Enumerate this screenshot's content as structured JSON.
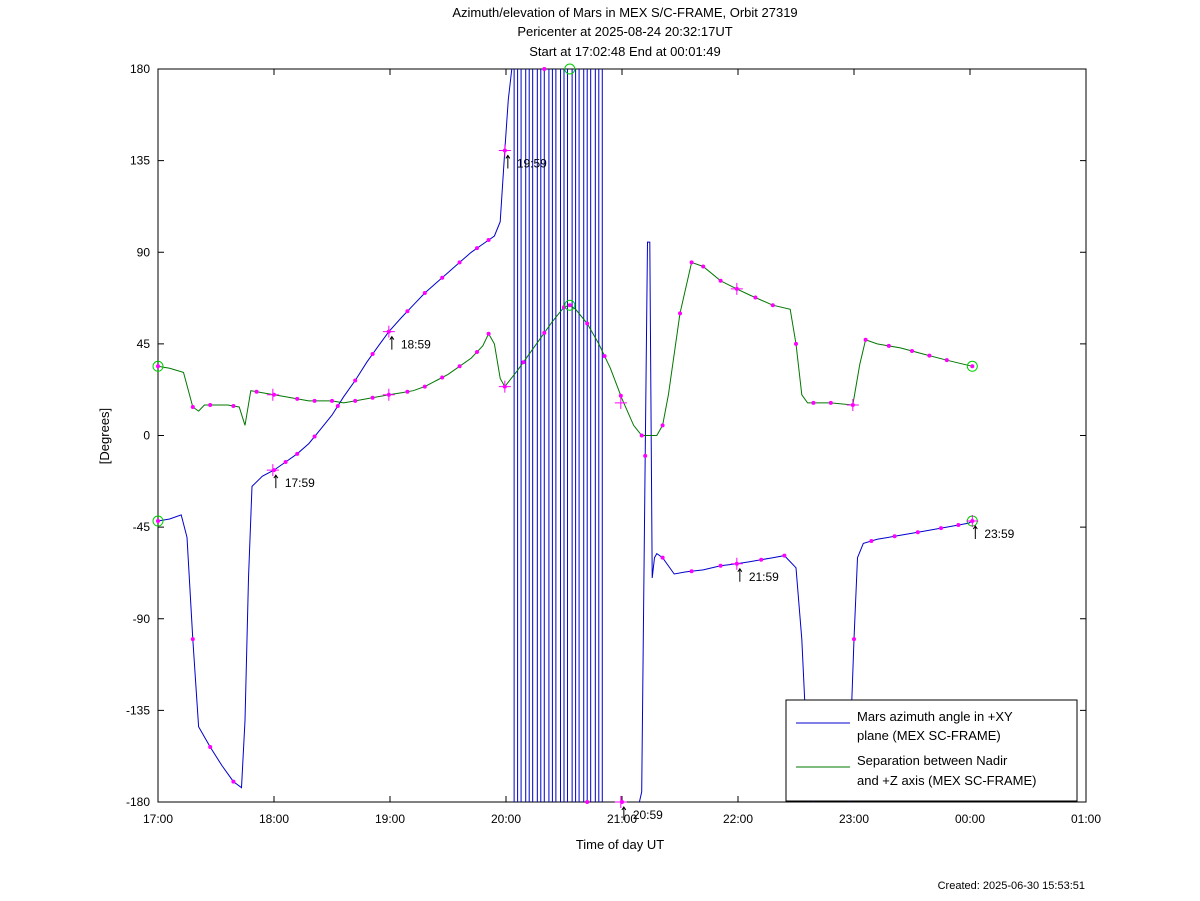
{
  "titles": {
    "line1": "Azimuth/elevation of Mars in MEX S/C-FRAME,  Orbit 27319",
    "line2": "Pericenter at 2025-08-24 20:32:17UT",
    "line3": "Start at 17:02:48 End at 00:01:49"
  },
  "footer": {
    "created": "Created: 2025-06-30 15:53:51"
  },
  "chart_data": {
    "type": "line",
    "xlabel": "Time of day UT",
    "ylabel": "[Degrees]",
    "xlim_hours": [
      17,
      25
    ],
    "ylim": [
      -180,
      180
    ],
    "x_ticks": [
      {
        "value": 17,
        "label": "17:00"
      },
      {
        "value": 18,
        "label": "18:00"
      },
      {
        "value": 19,
        "label": "19:00"
      },
      {
        "value": 20,
        "label": "20:00"
      },
      {
        "value": 21,
        "label": "21:00"
      },
      {
        "value": 22,
        "label": "22:00"
      },
      {
        "value": 23,
        "label": "23:00"
      },
      {
        "value": 24,
        "label": "00:00"
      },
      {
        "value": 25,
        "label": "01:00"
      }
    ],
    "y_ticks": [
      {
        "value": 180,
        "label": "180"
      },
      {
        "value": 135,
        "label": "135"
      },
      {
        "value": 90,
        "label": "90"
      },
      {
        "value": 45,
        "label": "45"
      },
      {
        "value": 0,
        "label": "0"
      },
      {
        "value": -45,
        "label": "-45"
      },
      {
        "value": -90,
        "label": "-90"
      },
      {
        "value": -135,
        "label": "-135"
      },
      {
        "value": -180,
        "label": "-180"
      }
    ],
    "colors": {
      "azimuth": "#0000cc",
      "separation": "#007700",
      "marker": "#ff00ff",
      "circle": "#00cc00"
    },
    "legend": {
      "placement": "bottom-right",
      "entries": [
        {
          "series": "azimuth",
          "line1": "Mars azimuth angle in +XY",
          "line2": "plane (MEX SC-FRAME)"
        },
        {
          "series": "separation",
          "line1": "Separation between Nadir",
          "line2": "and +Z axis (MEX SC-FRAME)"
        }
      ]
    },
    "series": [
      {
        "key": "azimuth",
        "points": [
          [
            17.0,
            -42
          ],
          [
            17.1,
            -41
          ],
          [
            17.2,
            -39
          ],
          [
            17.25,
            -50
          ],
          [
            17.3,
            -100
          ],
          [
            17.35,
            -143
          ],
          [
            17.45,
            -153
          ],
          [
            17.55,
            -162
          ],
          [
            17.65,
            -170
          ],
          [
            17.72,
            -173
          ],
          [
            17.75,
            -140
          ],
          [
            17.78,
            -70
          ],
          [
            17.81,
            -25
          ],
          [
            17.9,
            -20
          ],
          [
            18.0,
            -17
          ],
          [
            18.1,
            -13
          ],
          [
            18.2,
            -9
          ],
          [
            18.3,
            -4
          ],
          [
            18.4,
            3
          ],
          [
            18.5,
            10
          ],
          [
            18.6,
            19
          ],
          [
            18.7,
            27
          ],
          [
            18.8,
            36
          ],
          [
            18.9,
            44
          ],
          [
            18.99,
            51
          ],
          [
            19.1,
            58
          ],
          [
            19.2,
            64
          ],
          [
            19.3,
            70
          ],
          [
            19.4,
            75
          ],
          [
            19.5,
            80
          ],
          [
            19.6,
            85
          ],
          [
            19.7,
            90
          ],
          [
            19.8,
            94
          ],
          [
            19.9,
            98
          ],
          [
            19.95,
            105
          ],
          [
            19.99,
            140
          ],
          [
            20.02,
            165
          ],
          [
            20.05,
            180
          ]
        ],
        "second_points": [
          [
            21.15,
            -180
          ],
          [
            21.17,
            -175
          ],
          [
            21.2,
            -10
          ],
          [
            21.22,
            95
          ],
          [
            21.24,
            95
          ],
          [
            21.26,
            -70
          ],
          [
            21.28,
            -60
          ],
          [
            21.3,
            -58
          ],
          [
            21.35,
            -60
          ],
          [
            21.45,
            -68
          ],
          [
            21.55,
            -67
          ],
          [
            21.7,
            -66
          ],
          [
            21.85,
            -64
          ],
          [
            21.99,
            -63
          ],
          [
            22.1,
            -62
          ],
          [
            22.3,
            -60
          ],
          [
            22.4,
            -59
          ],
          [
            22.5,
            -65
          ],
          [
            22.55,
            -100
          ],
          [
            22.6,
            -160
          ],
          [
            22.65,
            -180
          ]
        ],
        "third_points": [
          [
            22.95,
            -180
          ],
          [
            23.0,
            -100
          ],
          [
            23.03,
            -60
          ],
          [
            23.08,
            -53
          ],
          [
            23.2,
            -51
          ],
          [
            23.4,
            -49
          ],
          [
            23.6,
            -47
          ],
          [
            23.8,
            -45
          ],
          [
            23.99,
            -43
          ],
          [
            24.02,
            -42
          ]
        ],
        "wrap_lines_hours": [
          20.07,
          20.1,
          20.13,
          20.17,
          20.2,
          20.23,
          20.27,
          20.3,
          20.33,
          20.37,
          20.4,
          20.43,
          20.47,
          20.5,
          20.53,
          20.57,
          20.6,
          20.63,
          20.67,
          20.7,
          20.73,
          20.77,
          20.8,
          20.83
        ],
        "markers_hours": [
          17.0,
          17.3,
          17.45,
          17.65,
          18.0,
          18.1,
          18.2,
          18.35,
          18.55,
          18.7,
          18.85,
          18.99,
          19.15,
          19.3,
          19.45,
          19.6,
          19.75,
          19.85,
          19.99,
          20.33,
          20.7,
          21.0,
          21.2,
          21.35,
          21.6,
          21.85,
          21.99,
          22.2,
          22.4,
          23.0,
          23.15,
          23.35,
          23.55,
          23.75,
          23.9,
          24.02
        ],
        "labels": [
          {
            "hour": 17.99,
            "value": -17,
            "text": "17:59"
          },
          {
            "hour": 18.99,
            "value": 51,
            "text": "18:59"
          },
          {
            "hour": 19.99,
            "value": 140,
            "text": "19:59"
          },
          {
            "hour": 20.99,
            "value": -180,
            "text": "20:59"
          },
          {
            "hour": 21.99,
            "value": -63,
            "text": "21:59"
          },
          {
            "hour": 24.02,
            "value": -42,
            "text": "23:59"
          }
        ]
      },
      {
        "key": "separation",
        "points": [
          [
            17.0,
            34
          ],
          [
            17.1,
            33
          ],
          [
            17.22,
            31
          ],
          [
            17.3,
            14
          ],
          [
            17.35,
            12
          ],
          [
            17.4,
            15
          ],
          [
            17.6,
            15
          ],
          [
            17.7,
            14
          ],
          [
            17.75,
            5
          ],
          [
            17.8,
            22
          ],
          [
            17.9,
            21
          ],
          [
            18.0,
            20
          ],
          [
            18.1,
            19
          ],
          [
            18.3,
            17
          ],
          [
            18.5,
            17
          ],
          [
            18.6,
            16
          ],
          [
            18.7,
            17
          ],
          [
            18.8,
            18
          ],
          [
            18.99,
            20
          ],
          [
            19.1,
            21
          ],
          [
            19.2,
            22
          ],
          [
            19.3,
            24
          ],
          [
            19.4,
            27
          ],
          [
            19.5,
            30
          ],
          [
            19.6,
            34
          ],
          [
            19.7,
            38
          ],
          [
            19.8,
            44
          ],
          [
            19.85,
            50
          ],
          [
            19.9,
            45
          ],
          [
            19.95,
            28
          ],
          [
            19.99,
            24
          ],
          [
            20.1,
            32
          ],
          [
            20.2,
            40
          ],
          [
            20.3,
            48
          ],
          [
            20.4,
            56
          ],
          [
            20.5,
            63
          ],
          [
            20.55,
            64
          ],
          [
            20.6,
            62
          ],
          [
            20.7,
            55
          ],
          [
            20.8,
            45
          ],
          [
            20.9,
            33
          ],
          [
            21.0,
            18
          ],
          [
            21.1,
            5
          ],
          [
            21.17,
            0
          ],
          [
            21.3,
            0
          ],
          [
            21.35,
            5
          ],
          [
            21.4,
            20
          ],
          [
            21.5,
            60
          ],
          [
            21.6,
            85
          ],
          [
            21.7,
            83
          ],
          [
            21.85,
            76
          ],
          [
            21.99,
            72
          ],
          [
            22.1,
            69
          ],
          [
            22.3,
            64
          ],
          [
            22.45,
            62
          ],
          [
            22.5,
            45
          ],
          [
            22.55,
            20
          ],
          [
            22.6,
            16
          ],
          [
            22.8,
            16
          ],
          [
            22.99,
            15
          ],
          [
            23.05,
            35
          ],
          [
            23.1,
            47
          ],
          [
            23.2,
            45
          ],
          [
            23.4,
            43
          ],
          [
            23.6,
            40
          ],
          [
            23.8,
            37
          ],
          [
            24.02,
            34
          ]
        ],
        "markers_hours": [
          17.0,
          17.3,
          17.45,
          17.65,
          17.85,
          18.0,
          18.2,
          18.35,
          18.5,
          18.7,
          18.85,
          18.99,
          19.15,
          19.3,
          19.45,
          19.6,
          19.75,
          19.85,
          19.99,
          20.15,
          20.33,
          20.5,
          20.55,
          20.7,
          20.85,
          20.99,
          21.17,
          21.35,
          21.5,
          21.6,
          21.7,
          21.85,
          21.99,
          22.15,
          22.3,
          22.5,
          22.65,
          22.8,
          22.99,
          23.1,
          23.3,
          23.5,
          23.65,
          23.8,
          24.02
        ],
        "labels": [
          {
            "hour": 19.99,
            "value": 24,
            "text": ""
          },
          {
            "hour": 20.99,
            "value": 16,
            "text": ""
          }
        ]
      }
    ]
  }
}
